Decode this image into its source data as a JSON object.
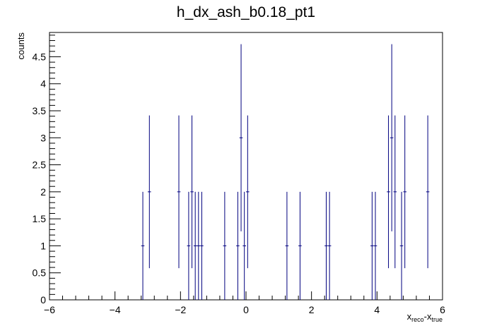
{
  "chart_data": {
    "type": "scatter",
    "title": "h_dx_ash_b0.18_pt1",
    "xlabel": {
      "main": "x",
      "sub1": "reco",
      "mid": "-x",
      "sub2": "true"
    },
    "ylabel": "counts",
    "xlim": [
      -6,
      6
    ],
    "ylim": [
      0,
      4.95
    ],
    "xticks": [
      -6,
      -4,
      -2,
      0,
      2,
      4,
      6
    ],
    "xtick_labels": [
      "−6",
      "−4",
      "−2",
      "0",
      "2",
      "4",
      "6"
    ],
    "yticks": [
      0,
      0.5,
      1,
      1.5,
      2,
      2.5,
      3,
      3.5,
      4,
      4.5
    ],
    "ytick_labels": [
      "0",
      "0.5",
      "1",
      "1.5",
      "2",
      "2.5",
      "3",
      "3.5",
      "4",
      "4.5"
    ],
    "bin_width": 0.1,
    "error_type": "poisson_sqrt",
    "grid": false,
    "legend": "none",
    "colors": {
      "markers": "#00007f",
      "axes": "#000000",
      "background": "#ffffff"
    },
    "points": [
      {
        "x": -3.15,
        "y": 1
      },
      {
        "x": -2.95,
        "y": 2
      },
      {
        "x": -2.05,
        "y": 2
      },
      {
        "x": -1.75,
        "y": 1
      },
      {
        "x": -1.65,
        "y": 2
      },
      {
        "x": -1.55,
        "y": 1
      },
      {
        "x": -1.45,
        "y": 1
      },
      {
        "x": -1.35,
        "y": 1
      },
      {
        "x": -0.65,
        "y": 1
      },
      {
        "x": -0.25,
        "y": 1
      },
      {
        "x": -0.15,
        "y": 3
      },
      {
        "x": -0.05,
        "y": 1
      },
      {
        "x": 0.05,
        "y": 2
      },
      {
        "x": 1.25,
        "y": 1
      },
      {
        "x": 1.65,
        "y": 1
      },
      {
        "x": 2.45,
        "y": 1
      },
      {
        "x": 2.55,
        "y": 1
      },
      {
        "x": 3.85,
        "y": 1
      },
      {
        "x": 3.95,
        "y": 1
      },
      {
        "x": 4.35,
        "y": 2
      },
      {
        "x": 4.45,
        "y": 3
      },
      {
        "x": 4.55,
        "y": 2
      },
      {
        "x": 4.75,
        "y": 1
      },
      {
        "x": 4.85,
        "y": 2
      },
      {
        "x": 5.55,
        "y": 2
      }
    ]
  }
}
